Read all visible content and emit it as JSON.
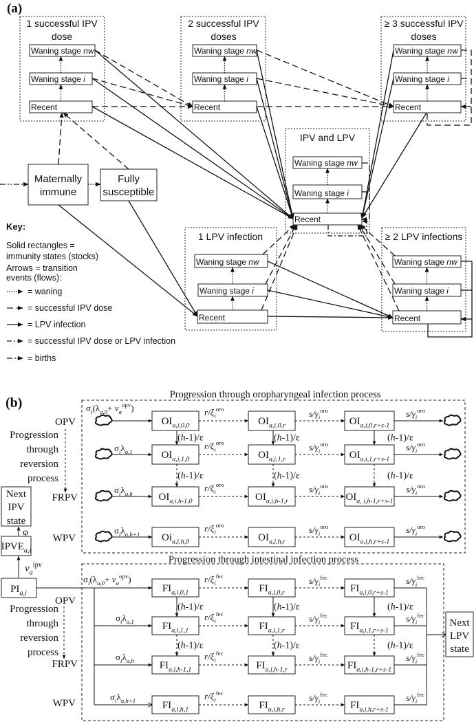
{
  "panel_a": {
    "label": "(a)",
    "groups": {
      "ipv1": {
        "title": [
          "1 successful IPV",
          "dose"
        ]
      },
      "ipv2": {
        "title": [
          "2 successful IPV",
          "doses"
        ]
      },
      "ipv3": {
        "title": [
          "≥ 3 successful IPV",
          "doses"
        ]
      },
      "ipvlpv": {
        "title": [
          "IPV and LPV"
        ]
      },
      "lpv1": {
        "title": [
          "1 LPV infection"
        ]
      },
      "lpv2": {
        "title": [
          "≥ 2 LPV infections"
        ]
      }
    },
    "stages": {
      "nw": [
        [
          "Waning stage ",
          ""
        ],
        [
          "nw",
          "i"
        ]
      ],
      "i": [
        [
          "Waning stage ",
          ""
        ],
        [
          "i",
          "i"
        ]
      ],
      "recent": [
        [
          "Recent",
          ""
        ]
      ]
    },
    "maternally_immune": [
      "Maternally",
      "immune"
    ],
    "fully_susceptible": [
      "Fully",
      "susceptible"
    ],
    "key": {
      "title": "Key:",
      "lines": [
        "Solid rectangles =",
        "immunity states (stocks)",
        "Arrows =  transition",
        "events (flows):"
      ],
      "legend": [
        {
          "style": "dot",
          "label": "= waning"
        },
        {
          "style": "dash",
          "label": "= successful IPV dose"
        },
        {
          "style": "solid",
          "label": "= LPV infection"
        },
        {
          "style": "dashdot",
          "label": "= successful IPV dose or LPV infection"
        },
        {
          "style": "dashdotdot",
          "label": "= births"
        }
      ]
    }
  },
  "panel_b": {
    "label": "(b)",
    "oro_title": "Progression through oropharyngeal infection process",
    "int_title": "Progression through intestinal infection process",
    "strains": {
      "opv": "OPV",
      "frpv": "FRPV",
      "wpv": "WPV"
    },
    "reversion_text": [
      "Progression",
      "through",
      "reversion",
      "process"
    ],
    "next_ipv": [
      "Next",
      "IPV",
      "state"
    ],
    "phi": "φ",
    "ipve": [
      [
        "IPVE",
        ""
      ],
      [
        "a,i",
        "bi"
      ]
    ],
    "nu_ipv": [
      [
        "ν",
        "i"
      ],
      [
        "a",
        "bi"
      ],
      [
        "ipv",
        "p"
      ]
    ],
    "pi": [
      [
        "PI",
        ""
      ],
      [
        "a,i",
        "bi"
      ]
    ],
    "next_lpv": [
      "Next",
      "LPV",
      "state"
    ],
    "rate_h": [
      [
        "(",
        ""
      ],
      [
        "h",
        "i"
      ],
      [
        "-1)/ε",
        ""
      ]
    ],
    "oro": {
      "inflows": [
        [
          [
            "σ",
            ""
          ],
          [
            "i",
            "bi"
          ],
          [
            "(λ",
            ""
          ],
          [
            "a,0",
            "bi"
          ],
          [
            "+ ",
            ""
          ],
          [
            "ν",
            "i"
          ],
          [
            "a",
            "bi"
          ],
          [
            "opv",
            "p"
          ],
          [
            ")",
            ""
          ]
        ],
        [
          [
            "σ",
            ""
          ],
          [
            "i",
            "bi"
          ],
          [
            "λ",
            ""
          ],
          [
            "a,1",
            "bi"
          ]
        ],
        [
          [
            "σ",
            ""
          ],
          [
            "i",
            "bi"
          ],
          [
            "λ",
            ""
          ],
          [
            "a,h",
            "bi"
          ]
        ],
        [
          [
            "σ",
            ""
          ],
          [
            "i",
            "bi"
          ],
          [
            "λ",
            ""
          ],
          [
            "a,h+1",
            "bi"
          ]
        ]
      ],
      "nodes": [
        [
          {
            "base": "OI",
            "sub": "a,i,0,0"
          },
          {
            "base": "OI",
            "sub": "a,i,0,r"
          },
          {
            "base": "OI",
            "sub": "a,i,0,r+s-1"
          }
        ],
        [
          {
            "base": "OI",
            "sub": "a,i,1,0"
          },
          {
            "base": "OI",
            "sub": "a,i,1,r"
          },
          {
            "base": "OI",
            "sub": "a,i,1,r+s-1"
          }
        ],
        [
          {
            "base": "OI",
            "sub": "a,i,h-1,0"
          },
          {
            "base": "OI",
            "sub": "a,i,h-1,r"
          },
          {
            "base": "OI",
            "sub": "a, i,h-1,r+s-1"
          }
        ],
        [
          {
            "base": "Oi",
            "sub": "a,i,h,0"
          },
          {
            "base": "OI",
            "sub": "a,i,h,r"
          },
          {
            "base": "OI",
            "sub": "a,i,h,r+s-1"
          }
        ]
      ],
      "rate_r": [
        [
          "r/ξ",
          "i"
        ],
        [
          "i",
          "bi"
        ],
        [
          "oro",
          "p"
        ]
      ],
      "rate_s": [
        [
          "s/γ",
          "i"
        ],
        [
          "i",
          "bi"
        ],
        [
          "oro",
          "p"
        ]
      ]
    },
    "int": {
      "inflows": [
        [
          [
            "σ",
            ""
          ],
          [
            "i",
            "bi"
          ],
          [
            "(λ",
            ""
          ],
          [
            "a,0",
            "bi"
          ],
          [
            "+ ",
            ""
          ],
          [
            "ν",
            "i"
          ],
          [
            "a",
            "bi"
          ],
          [
            "opv",
            "p"
          ],
          [
            ")",
            ""
          ]
        ],
        [
          [
            "σ",
            ""
          ],
          [
            "i",
            "bi"
          ],
          [
            "λ",
            ""
          ],
          [
            "a,1",
            "bi"
          ]
        ],
        [
          [
            "σ",
            ""
          ],
          [
            "i",
            "bi"
          ],
          [
            "λ",
            ""
          ],
          [
            "a,h",
            "bi"
          ]
        ],
        [
          [
            "σ",
            ""
          ],
          [
            "i",
            "bi"
          ],
          [
            "λ",
            ""
          ],
          [
            "a,h+1",
            "bi"
          ]
        ]
      ],
      "nodes": [
        [
          {
            "base": "FI",
            "sub": "a,i,0,1"
          },
          {
            "base": "FI",
            "sub": "a,i,0,r"
          },
          {
            "base": "FI",
            "sub": "a,i,0,r+s-1"
          }
        ],
        [
          {
            "base": "FI",
            "sub": "a,i,1,1"
          },
          {
            "base": "FI",
            "sub": "a,i,1,r"
          },
          {
            "base": "FI",
            "sub": "a,i,1,r+s-1"
          }
        ],
        [
          {
            "base": "FI",
            "sub": "a,i,h-1,1"
          },
          {
            "base": "FI",
            "sub": "a,i,h-1,r"
          },
          {
            "base": "FI",
            "sub": "a,i,h-1,r+s-1"
          }
        ],
        [
          {
            "base": "FI",
            "sub": "a,i,h,1"
          },
          {
            "base": "FI",
            "sub": "a,i,h,r"
          },
          {
            "base": "FI",
            "sub": "a,i,h,r+s-1"
          }
        ]
      ],
      "rate_r": [
        [
          "r/ξ",
          "i"
        ],
        [
          "i",
          "bi"
        ],
        [
          "fec",
          "p"
        ]
      ],
      "rate_s": [
        [
          "s/γ",
          "i"
        ],
        [
          "i",
          "bi"
        ],
        [
          "fec",
          "p"
        ]
      ]
    }
  }
}
